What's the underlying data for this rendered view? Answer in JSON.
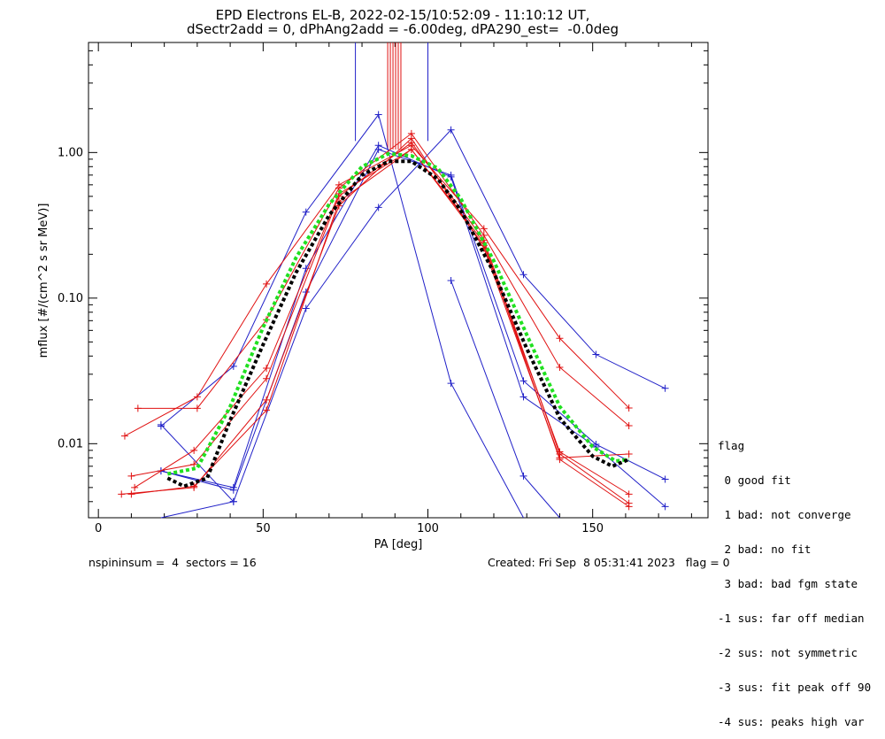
{
  "title_line1": "EPD Electrons EL-B, 2022-02-15/10:52:09 - 11:10:12 UT,",
  "title_line2": "dSectr2add = 0, dPhAng2add = -6.00deg, dPA290_est=  -0.0deg",
  "footer": {
    "left": "nspininsum =  4  sectors = 16",
    "right": "Created: Fri Sep  8 05:31:41 2023   flag = 0"
  },
  "flag_legend": {
    "title": "flag",
    "items": [
      " 0 good fit",
      " 1 bad: not converge",
      " 2 bad: no fit",
      " 3 bad: bad fgm state",
      "-1 sus: far off median",
      "-2 sus: not symmetric",
      "-3 sus: fit peak off 90",
      "-4 sus: peaks high var"
    ]
  },
  "colors": {
    "blue": "#2020c8",
    "red": "#e01010",
    "green": "#20e020",
    "black": "#000000"
  },
  "chart_data": {
    "type": "line",
    "xlabel": "PA [deg]",
    "ylabel": "mflux [#/(cm^2 s sr MeV)]",
    "xlim": [
      -3,
      185
    ],
    "ylim": [
      0.0031,
      5.7
    ],
    "yscale": "log",
    "x_ticks": [
      0,
      50,
      100,
      150
    ],
    "y_ticks": [
      {
        "value": 0.01,
        "label": "0.01"
      },
      {
        "value": 0.1,
        "label": "0.10"
      },
      {
        "value": 1.0,
        "label": "1.00"
      }
    ],
    "series": [
      {
        "color": "blue",
        "points": [
          [
            19,
            0.0132
          ],
          [
            41,
            0.034
          ],
          [
            63,
            0.39
          ],
          [
            85,
            1.82
          ],
          [
            107,
            0.026
          ],
          [
            129,
            0.0026
          ]
        ]
      },
      {
        "color": "blue",
        "points": [
          [
            19,
            0.0065
          ],
          [
            41,
            0.005
          ],
          [
            63,
            0.16
          ],
          [
            85,
            1.12
          ],
          [
            107,
            0.68
          ],
          [
            129,
            0.021
          ],
          [
            151,
            0.0095
          ],
          [
            172,
            0.0037
          ]
        ]
      },
      {
        "color": "blue",
        "points": [
          [
            19,
            0.0135
          ],
          [
            41,
            0.004
          ],
          [
            63,
            0.085
          ],
          [
            85,
            0.42
          ],
          [
            107,
            1.43
          ],
          [
            129,
            0.145
          ],
          [
            151,
            0.041
          ],
          [
            172,
            0.024
          ]
        ]
      },
      {
        "color": "blue",
        "points": [
          [
            19,
            0.0029
          ],
          [
            41,
            0.004
          ]
        ]
      },
      {
        "color": "blue",
        "points": [
          [
            107,
            0.132
          ],
          [
            129,
            0.006
          ],
          [
            140,
            0.0028
          ]
        ]
      },
      {
        "color": "blue",
        "points": [
          [
            19,
            0.0065
          ],
          [
            41,
            0.0048
          ],
          [
            63,
            0.11
          ],
          [
            85,
            1.05
          ],
          [
            107,
            0.7
          ],
          [
            129,
            0.027
          ],
          [
            151,
            0.0099
          ],
          [
            172,
            0.0057
          ]
        ]
      },
      {
        "color": "red",
        "points": [
          [
            8,
            0.0113
          ],
          [
            30,
            0.021
          ],
          [
            51,
            0.125
          ],
          [
            73,
            0.6
          ],
          [
            95,
            1.12
          ],
          [
            117,
            0.3
          ],
          [
            140,
            0.053
          ],
          [
            161,
            0.0176
          ]
        ]
      },
      {
        "color": "red",
        "points": [
          [
            12,
            0.0175
          ],
          [
            30,
            0.0175
          ],
          [
            51,
            0.071
          ],
          [
            73,
            0.57
          ],
          [
            95,
            1.35
          ],
          [
            117,
            0.27
          ],
          [
            140,
            0.0335
          ],
          [
            161,
            0.0133
          ]
        ]
      },
      {
        "color": "red",
        "points": [
          [
            7,
            0.0045
          ],
          [
            29,
            0.005
          ],
          [
            51,
            0.02
          ],
          [
            73,
            0.43
          ],
          [
            95,
            1.25
          ],
          [
            117,
            0.22
          ],
          [
            140,
            0.008
          ],
          [
            161,
            0.0085
          ]
        ]
      },
      {
        "color": "red",
        "points": [
          [
            10,
            0.0045
          ],
          [
            29,
            0.0051
          ],
          [
            51,
            0.017
          ],
          [
            73,
            0.46
          ],
          [
            95,
            1.05
          ],
          [
            117,
            0.23
          ],
          [
            140,
            0.0088
          ],
          [
            161,
            0.0045
          ]
        ]
      },
      {
        "color": "red",
        "points": [
          [
            10,
            0.006
          ],
          [
            29,
            0.0072
          ],
          [
            51,
            0.028
          ],
          [
            73,
            0.5
          ],
          [
            95,
            1.17
          ],
          [
            117,
            0.25
          ],
          [
            140,
            0.0085
          ],
          [
            161,
            0.0039
          ]
        ]
      },
      {
        "color": "red",
        "points": [
          [
            11,
            0.005
          ],
          [
            29,
            0.009
          ],
          [
            51,
            0.033
          ],
          [
            73,
            0.52
          ],
          [
            95,
            1.05
          ],
          [
            117,
            0.24
          ],
          [
            140,
            0.0078
          ],
          [
            161,
            0.0037
          ]
        ]
      },
      {
        "color": "green",
        "dashed": true,
        "points": [
          [
            21,
            0.0062
          ],
          [
            30,
            0.0068
          ],
          [
            40,
            0.018
          ],
          [
            50,
            0.063
          ],
          [
            60,
            0.19
          ],
          [
            70,
            0.44
          ],
          [
            80,
            0.8
          ],
          [
            88,
            0.98
          ],
          [
            95,
            0.95
          ],
          [
            103,
            0.78
          ],
          [
            110,
            0.48
          ],
          [
            120,
            0.18
          ],
          [
            130,
            0.056
          ],
          [
            140,
            0.018
          ],
          [
            150,
            0.0095
          ],
          [
            157,
            0.0076
          ],
          [
            161,
            0.0078
          ]
        ]
      },
      {
        "color": "black",
        "dashed": true,
        "points": [
          [
            21,
            0.0058
          ],
          [
            26,
            0.0051
          ],
          [
            33,
            0.0058
          ],
          [
            40,
            0.0145
          ],
          [
            50,
            0.048
          ],
          [
            60,
            0.15
          ],
          [
            70,
            0.37
          ],
          [
            80,
            0.7
          ],
          [
            88,
            0.87
          ],
          [
            95,
            0.87
          ],
          [
            103,
            0.66
          ],
          [
            110,
            0.4
          ],
          [
            120,
            0.15
          ],
          [
            130,
            0.045
          ],
          [
            140,
            0.015
          ],
          [
            150,
            0.0082
          ],
          [
            156,
            0.007
          ],
          [
            161,
            0.0078
          ]
        ]
      }
    ],
    "vertical_markers": [
      {
        "pa": 78,
        "color": "blue",
        "y_from": 1.2
      },
      {
        "pa": 100,
        "color": "blue",
        "y_from": 1.2
      },
      {
        "pa": 87.8,
        "color": "red",
        "y_from": 1.05
      },
      {
        "pa": 88.6,
        "color": "red",
        "y_from": 1.05
      },
      {
        "pa": 89.4,
        "color": "red",
        "y_from": 1.05
      },
      {
        "pa": 90.2,
        "color": "red",
        "y_from": 1.05
      },
      {
        "pa": 91.0,
        "color": "red",
        "y_from": 1.05
      },
      {
        "pa": 91.8,
        "color": "red",
        "y_from": 1.05
      }
    ]
  }
}
